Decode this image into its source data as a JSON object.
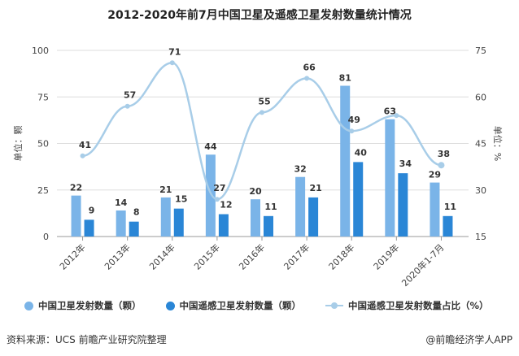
{
  "chart_data": {
    "type": "bar",
    "title": "2012-2020年前7月中国卫星及遥感卫星发射数量统计情况",
    "categories": [
      "2012年",
      "2013年",
      "2014年",
      "2015年",
      "2016年",
      "2017年",
      "2018年",
      "2019年",
      "2020年1-7月"
    ],
    "series": [
      {
        "name": "中国卫星发射数量（颗）",
        "type": "bar",
        "axis": "left",
        "color": "#7ab4e8",
        "values": [
          22,
          14,
          21,
          44,
          20,
          32,
          81,
          63,
          29
        ]
      },
      {
        "name": "中国遥感卫星发射数量（颗）",
        "type": "bar",
        "axis": "left",
        "color": "#2a86d6",
        "values": [
          9,
          8,
          15,
          12,
          11,
          21,
          40,
          34,
          11
        ]
      },
      {
        "name": "中国遥感卫星发射数量占比（%）",
        "type": "line",
        "axis": "right",
        "color": "#a8cde8",
        "values": [
          41,
          57,
          71,
          27,
          55,
          66,
          49,
          54,
          38
        ],
        "labels_shown": [
          true,
          true,
          true,
          true,
          true,
          true,
          true,
          false,
          true
        ]
      }
    ],
    "ylabel_left": "单位：颗",
    "ylim_left": [
      0,
      100
    ],
    "yticks_left": [
      0,
      25,
      50,
      75,
      100
    ],
    "ylabel_right": "单位：%",
    "ylim_right": [
      15,
      75
    ],
    "yticks_right": [
      15,
      30,
      45,
      60,
      75
    ],
    "grid": true,
    "legend": "bottom"
  },
  "source": "资料来源：UCS 前瞻产业研究院整理",
  "credit": "@前瞻经济学人APP"
}
